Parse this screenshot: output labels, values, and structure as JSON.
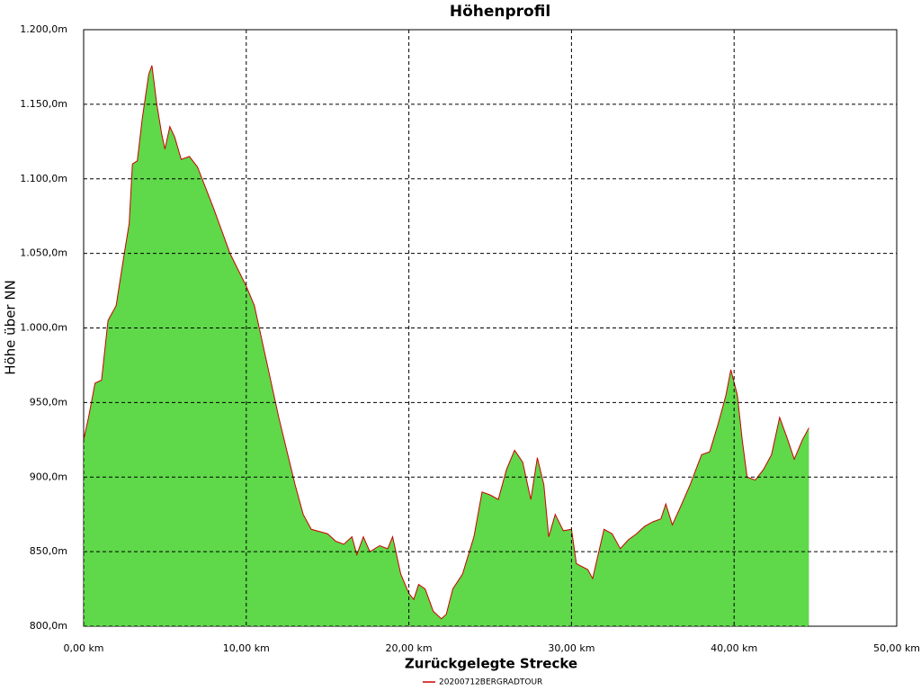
{
  "chart_data": {
    "type": "area",
    "title": "Höhenprofil",
    "x_label": "Zurückgelegte Strecke",
    "y_label": "Höhe über NN",
    "x": [
      0,
      0.3,
      0.7,
      1.1,
      1.5,
      2.0,
      2.5,
      2.8,
      3.0,
      3.3,
      3.6,
      4.0,
      4.2,
      4.5,
      4.8,
      5.0,
      5.3,
      5.6,
      6.0,
      6.5,
      7.0,
      8.0,
      9.0,
      10.0,
      10.5,
      11.0,
      12.0,
      13.0,
      13.5,
      14.0,
      15.0,
      15.5,
      16.0,
      16.5,
      16.8,
      17.2,
      17.6,
      18.2,
      18.7,
      19.0,
      19.5,
      20.0,
      20.3,
      20.6,
      21.0,
      21.5,
      22.0,
      22.3,
      22.7,
      23.3,
      24.0,
      24.5,
      25.0,
      25.5,
      26.0,
      26.5,
      27.0,
      27.5,
      27.9,
      28.3,
      28.6,
      29.0,
      29.5,
      30.0,
      30.3,
      31.0,
      31.3,
      32.0,
      32.5,
      33.0,
      33.5,
      34.0,
      34.5,
      35.0,
      35.5,
      35.8,
      36.2,
      36.7,
      37.3,
      38.0,
      38.5,
      39.0,
      39.5,
      39.8,
      40.2,
      40.5,
      40.8,
      41.3,
      41.8,
      42.3,
      42.8,
      43.3,
      43.7,
      44.2,
      44.6
    ],
    "series": [
      {
        "name": "20200712BERGRADTOUR",
        "color": "#cc0000",
        "fill": "#5fd84a",
        "values": [
          925,
          940,
          963,
          965,
          1005,
          1015,
          1050,
          1070,
          1110,
          1112,
          1140,
          1170,
          1176,
          1150,
          1130,
          1120,
          1135,
          1128,
          1113,
          1115,
          1108,
          1080,
          1050,
          1028,
          1015,
          990,
          940,
          895,
          875,
          865,
          862,
          857,
          855,
          860,
          848,
          860,
          850,
          854,
          852,
          860,
          835,
          822,
          818,
          828,
          825,
          810,
          805,
          808,
          825,
          835,
          860,
          890,
          888,
          885,
          905,
          918,
          910,
          885,
          913,
          895,
          860,
          875,
          864,
          865,
          842,
          838,
          832,
          865,
          862,
          852,
          858,
          862,
          867,
          870,
          872,
          882,
          868,
          880,
          895,
          915,
          917,
          935,
          955,
          972,
          955,
          925,
          900,
          898,
          905,
          915,
          940,
          925,
          912,
          925,
          933
        ]
      }
    ],
    "xlim": [
      0,
      50
    ],
    "ylim": [
      800,
      1200
    ],
    "xticks": [
      {
        "value": 0,
        "label": "0,00 km"
      },
      {
        "value": 10,
        "label": "10,00 km"
      },
      {
        "value": 20,
        "label": "20,00 km"
      },
      {
        "value": 30,
        "label": "30,00 km"
      },
      {
        "value": 40,
        "label": "40,00 km"
      },
      {
        "value": 50,
        "label": "50,00 km"
      }
    ],
    "yticks": [
      {
        "value": 800,
        "label": "800,0m"
      },
      {
        "value": 850,
        "label": "850,0m"
      },
      {
        "value": 900,
        "label": "900,0m"
      },
      {
        "value": 950,
        "label": "950,0m"
      },
      {
        "value": 1000,
        "label": "1.000,0m"
      },
      {
        "value": 1050,
        "label": "1.050,0m"
      },
      {
        "value": 1100,
        "label": "1.100,0m"
      },
      {
        "value": 1150,
        "label": "1.150,0m"
      },
      {
        "value": 1200,
        "label": "1.200,0m"
      }
    ],
    "grid": true
  }
}
